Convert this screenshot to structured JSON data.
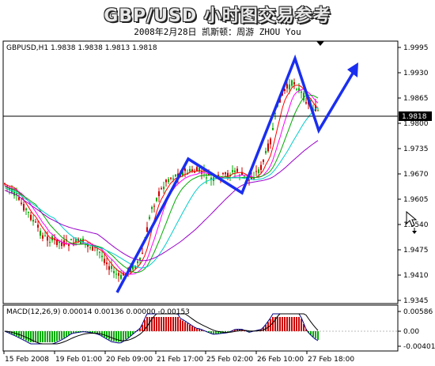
{
  "header": {
    "title": "GBP/USD 小时图交易参考",
    "subtitle": "2008年2月28日  凯斯顿：周游 ZHOU You"
  },
  "chart": {
    "info_label": "GBPUSD,H1  1.9838 1.9838 1.9813 1.9818",
    "price_ticks": [
      "1.9995",
      "1.9930",
      "1.9865",
      "1.9800",
      "1.9735",
      "1.9670",
      "1.9605",
      "1.9540",
      "1.9475",
      "1.9410",
      "1.9345"
    ],
    "current_price": "1.9818",
    "macd_label": "MACD(12,26,9) 0.00014 0.00136 0.00000 -0.00153",
    "macd_ticks": [
      "0.00586",
      "0.00",
      "-0.00401"
    ],
    "time_ticks": [
      "15 Feb 2008",
      "19 Feb 01:00",
      "20 Feb 09:00",
      "21 Feb 17:00",
      "25 Feb 02:00",
      "26 Feb 10:00",
      "27 Feb 18:00"
    ]
  },
  "colors": {
    "bull": "#00aa00",
    "bear": "#cc0000",
    "arrow": "#1a2ef0",
    "ma_red": "#ff0000",
    "ma_pink": "#ff00ff",
    "ma_cyan": "#00cccc",
    "ma_violet": "#9900cc",
    "ma_green": "#00aa00"
  }
}
